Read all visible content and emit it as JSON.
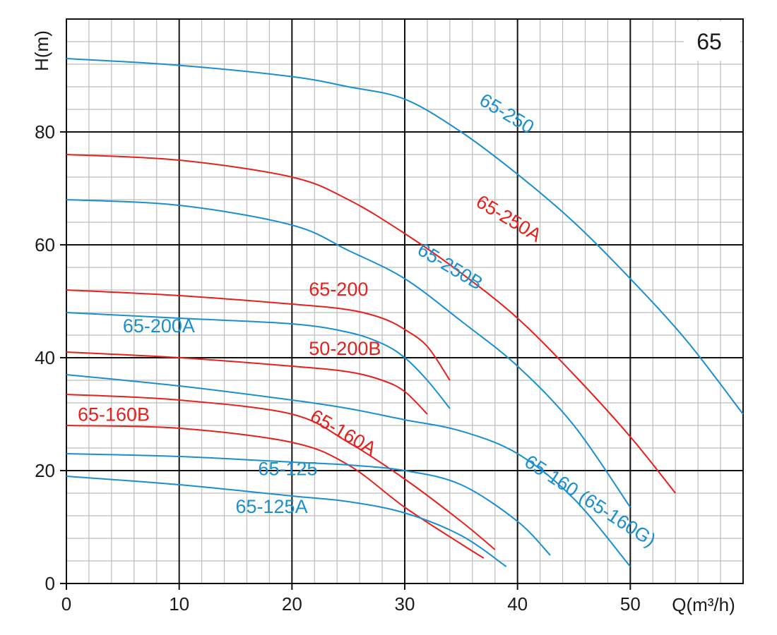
{
  "chart_data": {
    "type": "line",
    "title": "65",
    "xlabel": "Q(m³/h)",
    "ylabel": "H(m)",
    "xlim": [
      0,
      60
    ],
    "ylim": [
      0,
      100
    ],
    "x_ticks": [
      "0",
      "10",
      "20",
      "30",
      "40",
      "50"
    ],
    "y_ticks": [
      "0",
      "20",
      "40",
      "60",
      "80"
    ],
    "grid": true,
    "colors": {
      "blue": "#1a8fd0",
      "red": "#e8201c"
    },
    "series": [
      {
        "name": "65-250",
        "color": "blue",
        "x": [
          0,
          10,
          20,
          25,
          30,
          35,
          40,
          45,
          50,
          55,
          60
        ],
        "y": [
          93,
          91.8,
          89.8,
          88,
          85.8,
          80,
          72.5,
          64,
          54,
          43,
          30
        ]
      },
      {
        "name": "65-250A",
        "color": "red",
        "x": [
          0,
          10,
          20,
          25,
          30,
          35,
          40,
          45,
          50,
          54
        ],
        "y": [
          76,
          75,
          72,
          68,
          62,
          55,
          47,
          37,
          26,
          16
        ]
      },
      {
        "name": "65-250B",
        "color": "blue",
        "x": [
          0,
          10,
          20,
          25,
          30,
          35,
          40,
          45,
          50
        ],
        "y": [
          68,
          67,
          63.5,
          59,
          54,
          46.5,
          38.5,
          28,
          13.5
        ]
      },
      {
        "name": "65-200",
        "color": "red",
        "x": [
          0,
          10,
          20,
          25,
          28,
          30,
          32,
          34
        ],
        "y": [
          52,
          51,
          49.5,
          48.5,
          47,
          45,
          42,
          36
        ]
      },
      {
        "name": "65-200A",
        "color": "blue",
        "x": [
          0,
          10,
          20,
          25,
          28,
          30,
          32,
          34
        ],
        "y": [
          48,
          47,
          46,
          44.5,
          42.5,
          40,
          36,
          31
        ]
      },
      {
        "name": "50-200B",
        "color": "red",
        "x": [
          0,
          10,
          20,
          25,
          28,
          30,
          32
        ],
        "y": [
          41,
          40,
          38.5,
          37.5,
          36,
          34,
          30
        ]
      },
      {
        "name": "65-160 (65-160G)",
        "color": "blue",
        "x": [
          0,
          10,
          20,
          25,
          30,
          35,
          40,
          45,
          50
        ],
        "y": [
          37,
          35,
          32.5,
          31,
          29,
          27,
          23,
          15,
          3
        ]
      },
      {
        "name": "65-160A",
        "color": "red",
        "x": [
          0,
          10,
          20,
          25,
          30,
          35,
          38
        ],
        "y": [
          33.5,
          32.5,
          30,
          25,
          18.5,
          11,
          6
        ]
      },
      {
        "name": "65-160B",
        "color": "red",
        "x": [
          0,
          10,
          20,
          25,
          30,
          35,
          37
        ],
        "y": [
          28,
          27.5,
          25,
          21,
          13.5,
          7,
          4.5
        ]
      },
      {
        "name": "65-125",
        "color": "blue",
        "x": [
          0,
          10,
          20,
          25,
          30,
          35,
          40,
          42.9
        ],
        "y": [
          23,
          22.5,
          21.5,
          21,
          20,
          17.5,
          11,
          5
        ]
      },
      {
        "name": "65-125A",
        "color": "blue",
        "x": [
          0,
          10,
          20,
          25,
          30,
          35,
          39
        ],
        "y": [
          19,
          17.5,
          15.5,
          14.5,
          12.5,
          8.5,
          3
        ]
      }
    ],
    "annotations": [
      {
        "text": "65-250",
        "color": "blue"
      },
      {
        "text": "65-250A",
        "color": "red"
      },
      {
        "text": "65-250B",
        "color": "blue"
      },
      {
        "text": "65-200",
        "color": "red"
      },
      {
        "text": "65-200A",
        "color": "blue"
      },
      {
        "text": "50-200B",
        "color": "red"
      },
      {
        "text": "65-160 (65-160G)",
        "color": "blue"
      },
      {
        "text": "65-160A",
        "color": "red"
      },
      {
        "text": "65-160B",
        "color": "red"
      },
      {
        "text": "65-125",
        "color": "blue"
      },
      {
        "text": "65-125A",
        "color": "blue"
      }
    ]
  }
}
